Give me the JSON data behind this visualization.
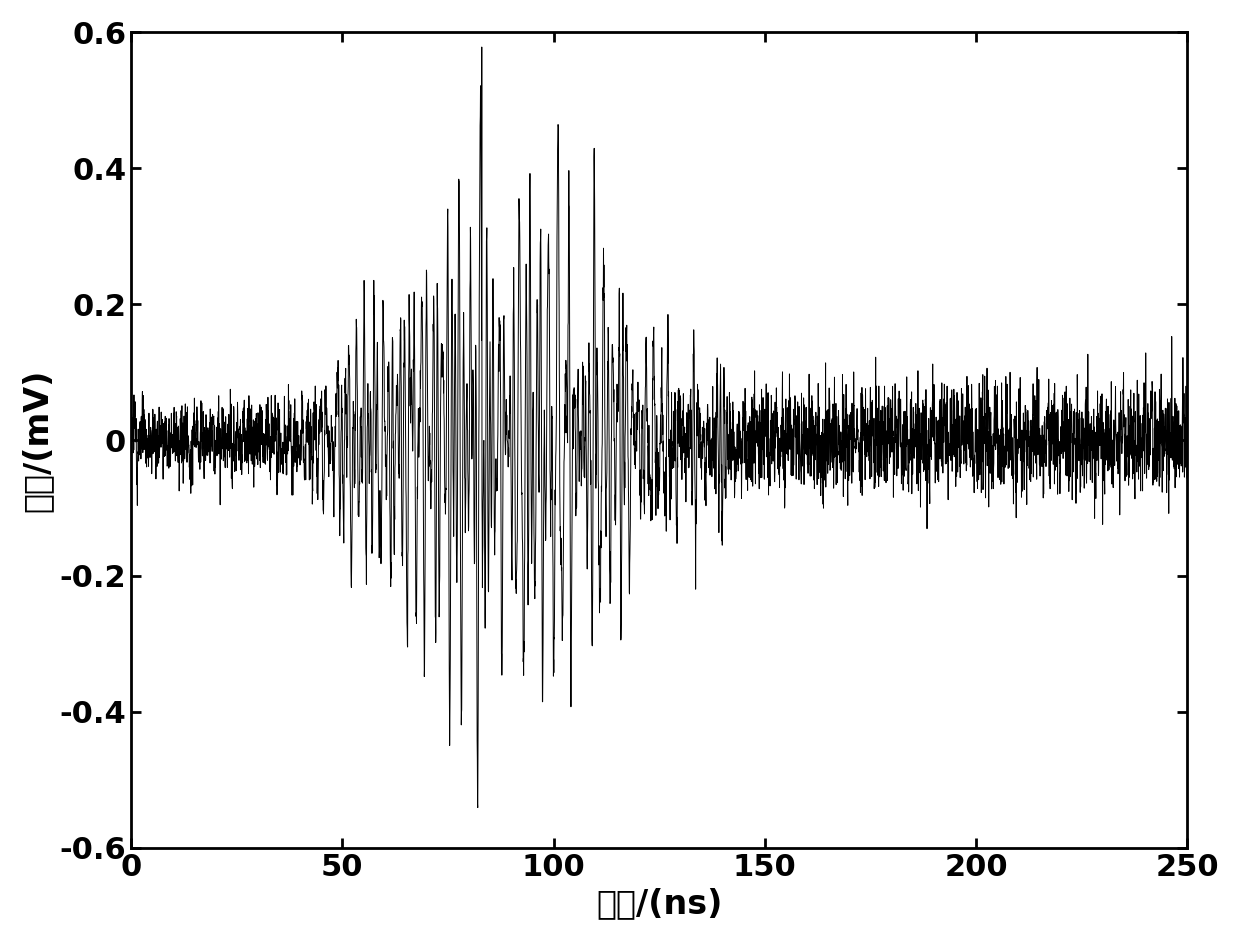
{
  "title": "",
  "xlabel": "时间/(ns)",
  "ylabel": "电压/(mV)",
  "xlim": [
    0,
    250
  ],
  "ylim": [
    -0.6,
    0.6
  ],
  "xticks": [
    0,
    50,
    100,
    150,
    200,
    250
  ],
  "yticks": [
    -0.6,
    -0.4,
    -0.2,
    0.0,
    0.2,
    0.4,
    0.6
  ],
  "ytick_labels": [
    "-0.6",
    "-0.4",
    "-0.2",
    "0",
    "0.2",
    "0.4",
    "0.6"
  ],
  "line_color": "#000000",
  "line_width": 0.7,
  "background_color": "#ffffff",
  "figsize": [
    12.4,
    9.41
  ],
  "dpi": 100
}
